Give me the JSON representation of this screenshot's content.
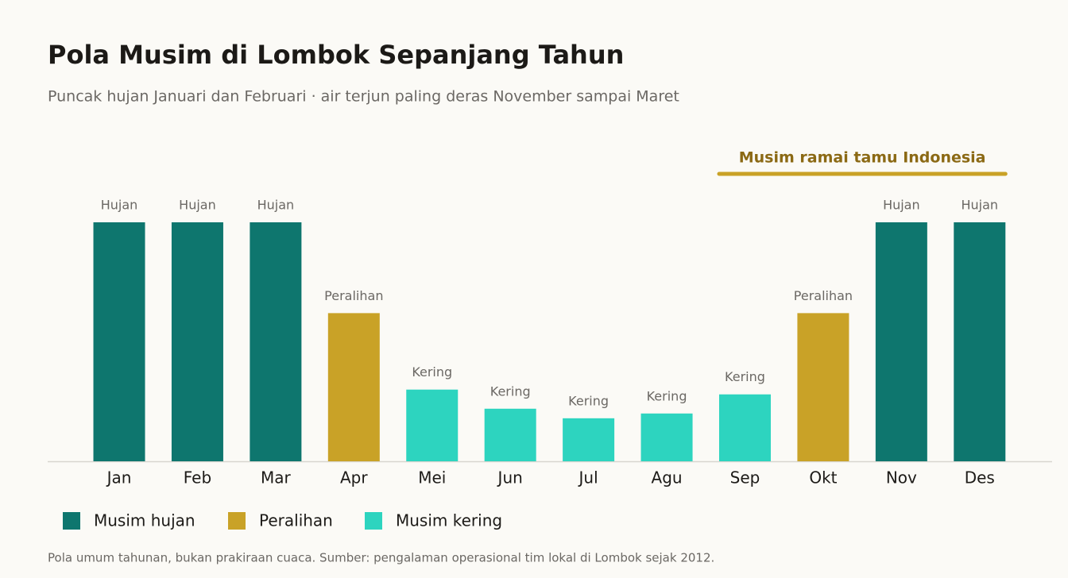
{
  "chart_data": {
    "type": "bar",
    "title": "Pola Musim di Lombok Sepanjang Tahun",
    "subtitle": "Puncak hujan Januari dan Februari · air terjun paling deras November sampai Maret",
    "categories": [
      "Jan",
      "Feb",
      "Mar",
      "Apr",
      "Mei",
      "Jun",
      "Jul",
      "Agu",
      "Sep",
      "Okt",
      "Nov",
      "Des"
    ],
    "series": [
      {
        "name": "Musim hujan",
        "color": "#0e766e",
        "values": [
          100,
          100,
          100,
          null,
          null,
          null,
          null,
          null,
          null,
          null,
          100,
          100
        ],
        "value_labels": [
          "Hujan",
          "Hujan",
          "Hujan",
          null,
          null,
          null,
          null,
          null,
          null,
          null,
          "Hujan",
          "Hujan"
        ]
      },
      {
        "name": "Peralihan",
        "color": "#c9a227",
        "values": [
          null,
          null,
          null,
          62,
          null,
          null,
          null,
          null,
          null,
          62,
          null,
          null
        ],
        "value_labels": [
          null,
          null,
          null,
          "Peralihan",
          null,
          null,
          null,
          null,
          null,
          "Peralihan",
          null,
          null
        ]
      },
      {
        "name": "Musim kering",
        "color": "#2dd4bf",
        "values": [
          null,
          null,
          null,
          null,
          30,
          22,
          18,
          20,
          28,
          null,
          null,
          null
        ],
        "value_labels": [
          null,
          null,
          null,
          null,
          "Kering",
          "Kering",
          "Kering",
          "Kering",
          "Kering",
          null,
          null,
          null
        ]
      }
    ],
    "ylim": [
      0,
      100
    ],
    "annotation": {
      "text": "Musim ramai tamu Indonesia",
      "from": "Sep",
      "to": "Des",
      "color": "#c9a227",
      "text_color": "#8b6914"
    },
    "footnote": "Pola umum tahunan, bukan prakiraan cuaca. Sumber: pengalaman operasional tim lokal di Lombok sejak 2012."
  }
}
